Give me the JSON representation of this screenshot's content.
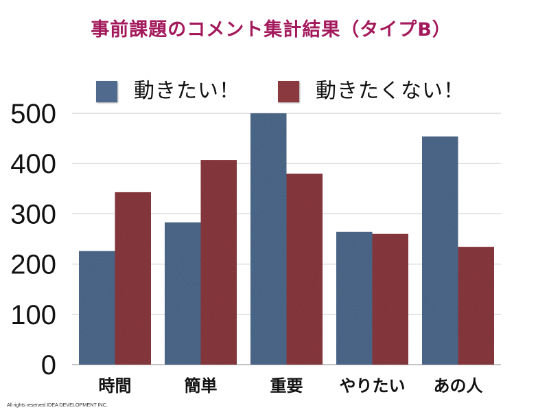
{
  "footer": "All rights reserved IDEA DEVELOPMENT INC.",
  "colors": {
    "title": "#A3195B",
    "grid": "#C9C9C9",
    "axis": "#8A8A8A"
  },
  "chart_data": {
    "type": "bar",
    "title": "事前課題のコメント集計結果（タイプB）",
    "xlabel": "",
    "ylabel": "",
    "categories": [
      "時間",
      "簡単",
      "重要",
      "やりたい",
      "あの人"
    ],
    "series": [
      {
        "name": "動きたい！",
        "color": "#4F6A8D",
        "values": [
          226,
          283,
          500,
          264,
          454
        ]
      },
      {
        "name": "動きたくない！",
        "color": "#8A3A3F",
        "values": [
          343,
          407,
          380,
          260,
          234
        ]
      }
    ],
    "ylim": [
      0,
      500
    ],
    "yticks": [
      0,
      100,
      200,
      300,
      400,
      500
    ],
    "grid": true,
    "legend": "top"
  }
}
